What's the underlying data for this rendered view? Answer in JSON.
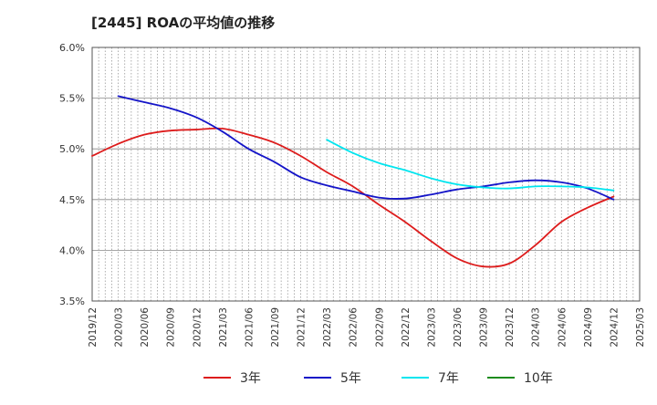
{
  "chart_data": {
    "type": "line",
    "title": "[2445]  ROAの平均値の推移",
    "xlabel": "",
    "ylabel": "",
    "ylim": [
      3.5,
      6.0
    ],
    "y_ticks": [
      "3.5%",
      "4.0%",
      "4.5%",
      "5.0%",
      "5.5%",
      "6.0%"
    ],
    "x_ticks": [
      "2019/12",
      "2020/03",
      "2020/06",
      "2020/09",
      "2020/12",
      "2021/03",
      "2021/06",
      "2021/09",
      "2021/12",
      "2022/03",
      "2022/06",
      "2022/09",
      "2022/12",
      "2023/03",
      "2023/06",
      "2023/09",
      "2023/12",
      "2024/03",
      "2024/06",
      "2024/09",
      "2024/12",
      "2025/03"
    ],
    "grid": true,
    "legend_position": "bottom",
    "series": [
      {
        "name": "3年",
        "color": "#dd1c1c",
        "values": [
          4.93,
          5.05,
          5.14,
          5.18,
          5.19,
          5.2,
          5.14,
          5.06,
          4.93,
          4.77,
          4.63,
          4.45,
          4.28,
          4.09,
          3.92,
          3.84,
          3.87,
          4.05,
          4.28,
          4.42,
          4.53,
          null
        ]
      },
      {
        "name": "5年",
        "color": "#1414c8",
        "values": [
          null,
          5.52,
          5.46,
          5.4,
          5.31,
          5.17,
          5.0,
          4.87,
          4.72,
          4.64,
          4.58,
          4.52,
          4.51,
          4.55,
          4.6,
          4.63,
          4.67,
          4.69,
          4.67,
          4.61,
          4.5,
          null
        ]
      },
      {
        "name": "7年",
        "color": "#00e5ef",
        "values": [
          null,
          null,
          null,
          null,
          null,
          null,
          null,
          null,
          null,
          5.09,
          4.96,
          4.86,
          4.79,
          4.71,
          4.65,
          4.62,
          4.61,
          4.63,
          4.63,
          4.62,
          4.59,
          null
        ]
      },
      {
        "name": "10年",
        "color": "#1e8c1e",
        "values": [
          null,
          null,
          null,
          null,
          null,
          null,
          null,
          null,
          null,
          null,
          null,
          null,
          null,
          null,
          null,
          null,
          null,
          null,
          null,
          null,
          null,
          null
        ]
      }
    ]
  }
}
